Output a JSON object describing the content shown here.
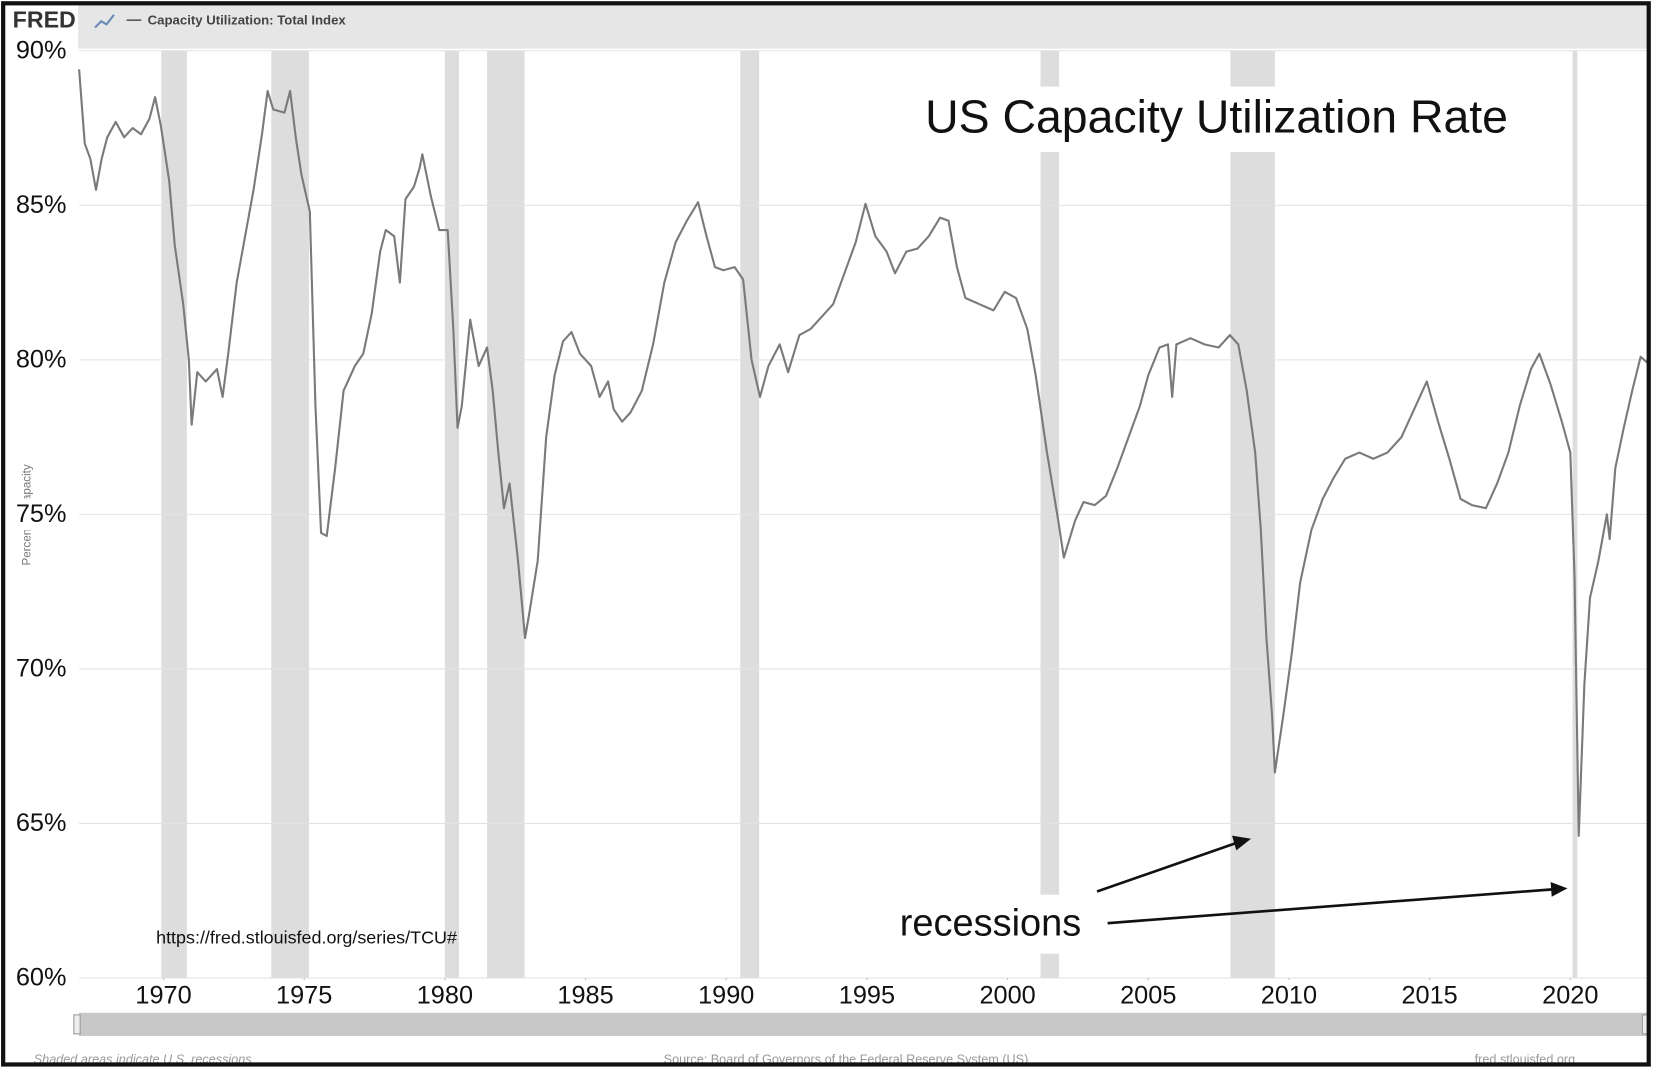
{
  "chart_data": {
    "type": "line",
    "brand": "FRED",
    "series_title": "Capacity Utilization: Total Index",
    "title": "US Capacity Utilization Rate",
    "annotation": "recessions",
    "url_note": "https://fred.stlouisfed.org/series/TCU#",
    "y_label": "Percent of Capacity",
    "footer_left": "Shaded areas indicate U.S. recessions",
    "footer_center": "Source: Board of Governors of the Federal Reserve System (US)",
    "footer_right": "fred.stlouisfed.org",
    "color": "#7a7a7a",
    "recession_color": "#dddddd",
    "grid": true,
    "xlim": [
      1967,
      2022.75
    ],
    "ylim": [
      60,
      90
    ],
    "xticks": [
      1970,
      1975,
      1980,
      1985,
      1990,
      1995,
      2000,
      2005,
      2010,
      2015,
      2020
    ],
    "yticks": [
      {
        "value": 60,
        "label": "60%"
      },
      {
        "value": 65,
        "label": "65%"
      },
      {
        "value": 70,
        "label": "70%"
      },
      {
        "value": 75,
        "label": "75%"
      },
      {
        "value": 80,
        "label": "80%"
      },
      {
        "value": 85,
        "label": "85%"
      },
      {
        "value": 90,
        "label": "90%"
      }
    ],
    "recessions": [
      [
        1969.92,
        1970.83
      ],
      [
        1973.83,
        1975.17
      ],
      [
        1980.0,
        1980.5
      ],
      [
        1981.5,
        1982.83
      ],
      [
        1990.5,
        1991.17
      ],
      [
        2001.17,
        2001.83
      ],
      [
        2007.92,
        2009.5
      ],
      [
        2020.08,
        2020.25
      ]
    ],
    "series": [
      {
        "name": "Capacity Utilization: Total Index",
        "color": "#7a7a7a",
        "x": [
          1967.0,
          1967.2,
          1967.4,
          1967.6,
          1967.8,
          1968.0,
          1968.3,
          1968.6,
          1968.9,
          1969.2,
          1969.5,
          1969.7,
          1969.9,
          1970.2,
          1970.4,
          1970.7,
          1970.9,
          1971.0,
          1971.2,
          1971.5,
          1971.9,
          1972.1,
          1972.3,
          1972.6,
          1972.9,
          1973.2,
          1973.5,
          1973.7,
          1973.9,
          1974.3,
          1974.5,
          1974.7,
          1974.9,
          1975.2,
          1975.4,
          1975.6,
          1975.8,
          1976.1,
          1976.4,
          1976.8,
          1977.1,
          1977.4,
          1977.7,
          1977.9,
          1978.2,
          1978.4,
          1978.6,
          1978.9,
          1979.1,
          1979.2,
          1979.5,
          1979.8,
          1980.1,
          1980.3,
          1980.45,
          1980.6,
          1980.9,
          1981.2,
          1981.5,
          1981.7,
          1981.9,
          1982.1,
          1982.3,
          1982.6,
          1982.85,
          1983.0,
          1983.3,
          1983.6,
          1983.9,
          1984.2,
          1984.5,
          1984.8,
          1985.2,
          1985.5,
          1985.8,
          1986.0,
          1986.3,
          1986.6,
          1987.0,
          1987.4,
          1987.8,
          1988.2,
          1988.6,
          1989.0,
          1989.3,
          1989.6,
          1989.9,
          1990.3,
          1990.6,
          1990.9,
          1991.2,
          1991.5,
          1991.9,
          1992.2,
          1992.6,
          1993.0,
          1993.4,
          1993.8,
          1994.2,
          1994.6,
          1994.95,
          1995.3,
          1995.7,
          1996.0,
          1996.4,
          1996.8,
          1997.2,
          1997.6,
          1997.9,
          1998.2,
          1998.5,
          1999.0,
          1999.5,
          1999.9,
          2000.3,
          2000.7,
          2001.0,
          2001.4,
          2001.8,
          2002.0,
          2002.4,
          2002.7,
          2003.1,
          2003.5,
          2003.9,
          2004.3,
          2004.7,
          2005.0,
          2005.4,
          2005.7,
          2005.85,
          2006.0,
          2006.5,
          2007.0,
          2007.5,
          2007.9,
          2008.2,
          2008.5,
          2008.8,
          2009.0,
          2009.2,
          2009.4,
          2009.5,
          2009.8,
          2010.1,
          2010.4,
          2010.8,
          2011.2,
          2011.6,
          2012.0,
          2012.5,
          2013.0,
          2013.5,
          2014.0,
          2014.5,
          2014.9,
          2015.3,
          2015.7,
          2016.1,
          2016.5,
          2017.0,
          2017.4,
          2017.8,
          2018.2,
          2018.6,
          2018.9,
          2019.3,
          2019.7,
          2020.0,
          2020.15,
          2020.3,
          2020.5,
          2020.7,
          2021.0,
          2021.3,
          2021.4,
          2021.6,
          2021.9,
          2022.2,
          2022.5,
          2022.75
        ],
        "values": [
          89.4,
          87.0,
          86.5,
          85.5,
          86.5,
          87.2,
          87.7,
          87.2,
          87.5,
          87.3,
          87.8,
          88.5,
          87.6,
          85.8,
          83.7,
          81.8,
          80.0,
          77.9,
          79.6,
          79.3,
          79.7,
          78.8,
          80.2,
          82.5,
          84.0,
          85.5,
          87.3,
          88.7,
          88.1,
          88.0,
          88.7,
          87.2,
          86.0,
          84.8,
          78.5,
          74.4,
          74.3,
          76.5,
          79.0,
          79.8,
          80.2,
          81.5,
          83.5,
          84.2,
          84.0,
          82.5,
          85.2,
          85.6,
          86.2,
          86.65,
          85.3,
          84.2,
          84.2,
          81.0,
          77.8,
          78.5,
          81.3,
          79.8,
          80.4,
          79.0,
          77.0,
          75.2,
          76.0,
          73.5,
          71.0,
          71.8,
          73.5,
          77.5,
          79.5,
          80.6,
          80.9,
          80.2,
          79.8,
          78.8,
          79.3,
          78.4,
          78.0,
          78.3,
          79.0,
          80.5,
          82.5,
          83.8,
          84.5,
          85.1,
          84.0,
          83.0,
          82.9,
          83.0,
          82.6,
          80.0,
          78.8,
          79.8,
          80.5,
          79.6,
          80.8,
          81.0,
          81.4,
          81.8,
          82.8,
          83.8,
          85.05,
          84.0,
          83.5,
          82.8,
          83.5,
          83.6,
          84.0,
          84.6,
          84.5,
          83.0,
          82.0,
          81.8,
          81.6,
          82.2,
          82.0,
          81.0,
          79.5,
          77.0,
          74.8,
          73.6,
          74.8,
          75.4,
          75.3,
          75.6,
          76.5,
          77.5,
          78.5,
          79.5,
          80.4,
          80.5,
          78.8,
          80.5,
          80.7,
          80.5,
          80.4,
          80.8,
          80.5,
          79.0,
          77.0,
          74.5,
          71.0,
          68.5,
          66.65,
          68.5,
          70.5,
          72.8,
          74.5,
          75.5,
          76.2,
          76.8,
          77.0,
          76.8,
          77.0,
          77.5,
          78.5,
          79.3,
          78.0,
          76.8,
          75.5,
          75.3,
          75.2,
          76.0,
          77.0,
          78.5,
          79.7,
          80.2,
          79.2,
          78.0,
          77.0,
          73.0,
          64.6,
          69.5,
          72.3,
          73.5,
          75.0,
          74.2,
          76.5,
          77.8,
          79.0,
          80.1,
          79.9
        ]
      }
    ]
  }
}
